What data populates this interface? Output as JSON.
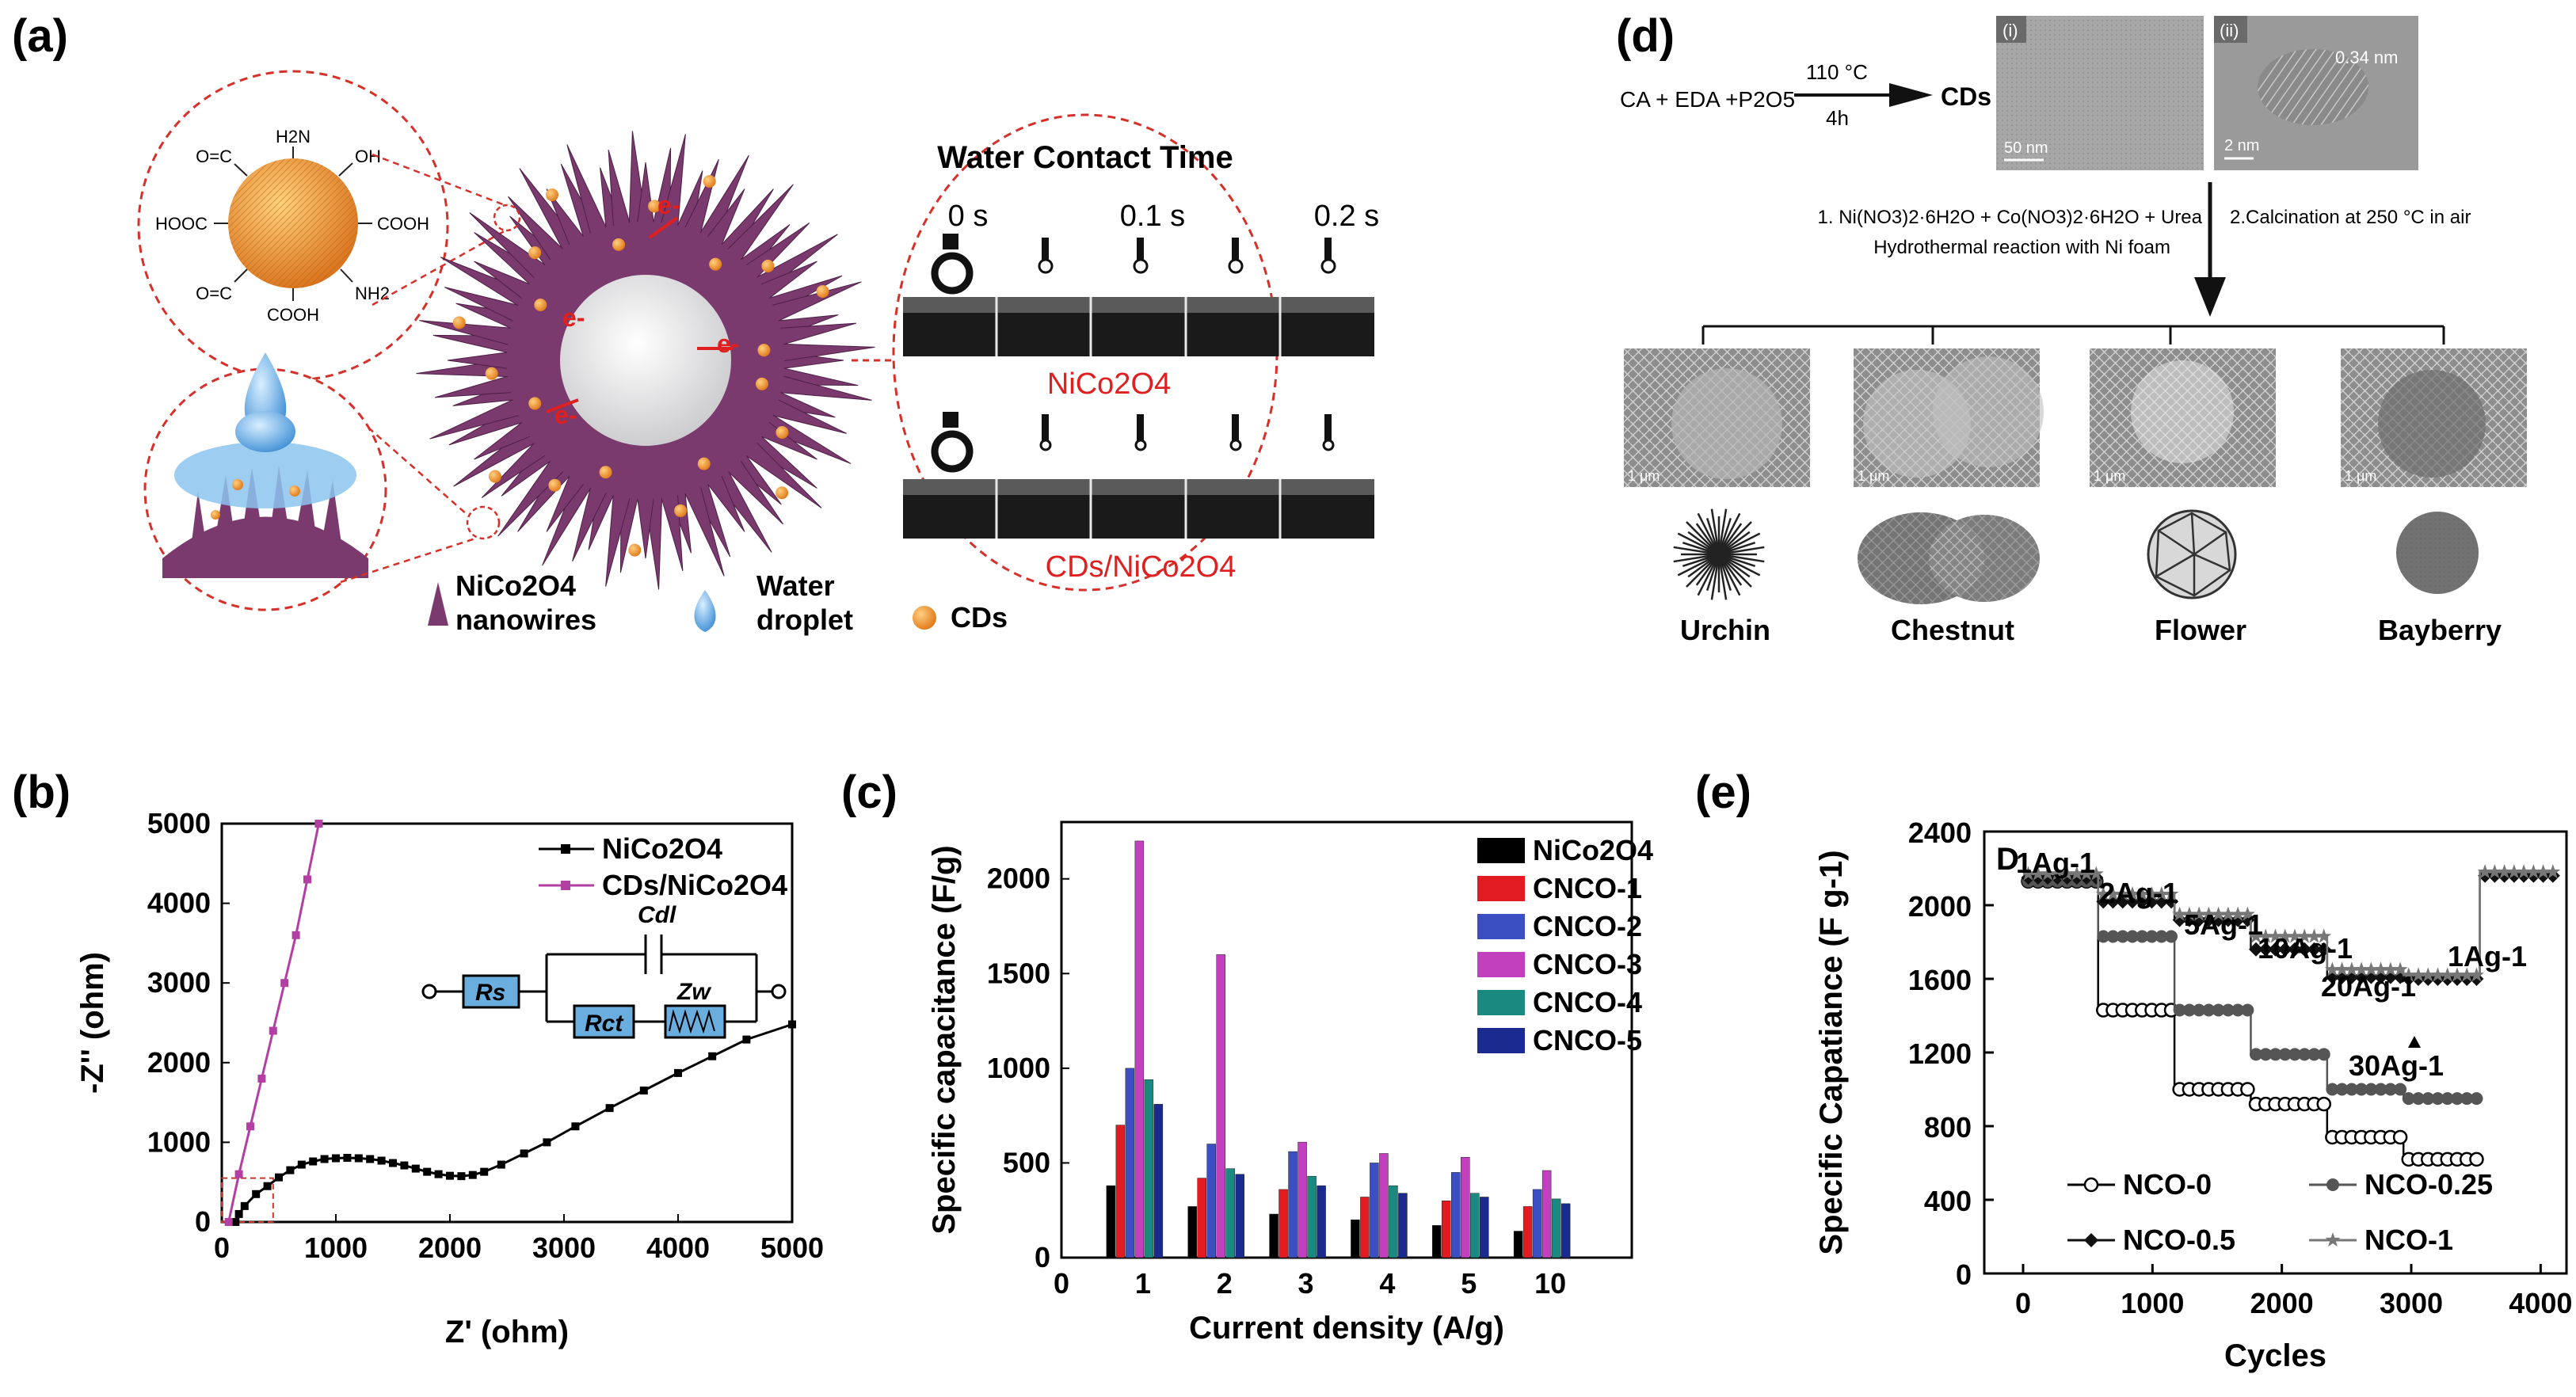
{
  "panels": {
    "a": {
      "label": "(a)",
      "cd_groups": [
        "H2N",
        "OH",
        "COOH",
        "NH2",
        "COOH",
        "HOOC",
        "O=C",
        "O=C"
      ],
      "contact_title": "Water Contact Time",
      "times": [
        "0 s",
        "0.1 s",
        "0.2 s"
      ],
      "row1_label": "NiCo2O4",
      "row2_label": "CDs/NiCo2O4",
      "electron": "e-",
      "legend": {
        "nanowires": [
          "NiCo2O4",
          "nanowires"
        ],
        "droplet": [
          "Water",
          "droplet"
        ],
        "cds": "CDs"
      },
      "colors": {
        "nanowire": "#7b3a6e",
        "cd": "#f0962a",
        "dash": "#d6302a",
        "water": "#6fb4e6"
      }
    },
    "d": {
      "label": "(d)",
      "reaction": "CA + EDA +P2O5",
      "condition_top": "110 °C",
      "condition_bottom": "4h",
      "product": "CDs",
      "tem1": {
        "tag": "(i)",
        "scale": "50 nm"
      },
      "tem2": {
        "tag": "(ii)",
        "lattice": "0.34 nm",
        "scale": "2 nm"
      },
      "step1_line1": "1. Ni(NO3)2·6H2O + Co(NO3)2·6H2O + Urea",
      "step1_line2": "Hydrothermal  reaction with Ni foam",
      "step2": "2.Calcination at 250 °C  in air",
      "sem_scale": "1 μm",
      "morphologies": [
        "Urchin",
        "Chestnut",
        "Flower",
        "Bayberry"
      ]
    },
    "b": {
      "label": "(b)",
      "legend": [
        "NiCo2O4",
        "CDs/NiCo2O4"
      ],
      "circuit": [
        "Rs",
        "Rct",
        "Zw",
        "Cdl"
      ]
    },
    "c": {
      "label": "(c)"
    },
    "e": {
      "label": "(e)",
      "corner_tag": "D"
    }
  },
  "chart_data": [
    {
      "id": "b",
      "type": "line",
      "xlabel": "Z' (ohm)",
      "ylabel": "-Z'' (ohm)",
      "xlim": [
        0,
        5000
      ],
      "ylim": [
        0,
        5000
      ],
      "xticks": [
        0,
        1000,
        2000,
        3000,
        4000,
        5000
      ],
      "yticks": [
        0,
        1000,
        2000,
        3000,
        4000,
        5000
      ],
      "series": [
        {
          "name": "NiCo2O4",
          "color": "#000000",
          "x": [
            120,
            150,
            200,
            300,
            400,
            500,
            600,
            700,
            800,
            900,
            1000,
            1100,
            1200,
            1300,
            1400,
            1500,
            1600,
            1700,
            1800,
            1900,
            2000,
            2100,
            2200,
            2300,
            2450,
            2650,
            2850,
            3100,
            3400,
            3700,
            4000,
            4300,
            4600,
            5000
          ],
          "y": [
            0,
            100,
            200,
            350,
            450,
            560,
            650,
            720,
            760,
            790,
            800,
            805,
            800,
            790,
            770,
            740,
            710,
            670,
            630,
            600,
            580,
            575,
            590,
            630,
            720,
            860,
            1000,
            1200,
            1430,
            1650,
            1870,
            2080,
            2290,
            2480
          ]
        },
        {
          "name": "CDs/NiCo2O4",
          "color": "#b43fa3",
          "x": [
            60,
            150,
            250,
            350,
            450,
            550,
            650,
            750,
            850
          ],
          "y": [
            0,
            600,
            1200,
            1800,
            2400,
            3000,
            3600,
            4300,
            5000
          ]
        }
      ]
    },
    {
      "id": "c",
      "type": "bar",
      "xlabel": "Current density (A/g)",
      "ylabel": "Specific capacitance (F/g)",
      "categories": [
        "1",
        "2",
        "3",
        "4",
        "5",
        "10"
      ],
      "xticks": [
        "0",
        "1",
        "2",
        "3",
        "4",
        "5",
        "10"
      ],
      "ylim": [
        0,
        2300
      ],
      "yticks": [
        0,
        500,
        1000,
        1500,
        2000
      ],
      "series": [
        {
          "name": "NiCo2O4",
          "color": "#000000",
          "values": [
            380,
            270,
            230,
            200,
            170,
            140
          ]
        },
        {
          "name": "CNCO-1",
          "color": "#e21b23",
          "values": [
            700,
            420,
            360,
            320,
            300,
            270
          ]
        },
        {
          "name": "CNCO-2",
          "color": "#3b4fc3",
          "values": [
            1000,
            600,
            560,
            500,
            450,
            360
          ]
        },
        {
          "name": "CNCO-3",
          "color": "#c23fbd",
          "values": [
            2200,
            1600,
            610,
            550,
            530,
            460
          ]
        },
        {
          "name": "CNCO-4",
          "color": "#1a8a80",
          "values": [
            940,
            470,
            430,
            380,
            340,
            310
          ]
        },
        {
          "name": "CNCO-5",
          "color": "#1b2a8e",
          "values": [
            810,
            440,
            380,
            340,
            320,
            285
          ]
        }
      ]
    },
    {
      "id": "e",
      "type": "line",
      "xlabel": "Cycles",
      "ylabel": "Specific Capatiance (F g-1)",
      "xlim": [
        -300,
        4200
      ],
      "ylim": [
        0,
        2400
      ],
      "xticks": [
        0,
        1000,
        2000,
        3000,
        4000
      ],
      "yticks": [
        0,
        400,
        800,
        1200,
        1600,
        2000,
        2400
      ],
      "rate_labels": [
        "1Ag-1",
        "2Ag-1",
        "5Ag-1",
        "10Ag-1",
        "20Ag-1",
        "30Ag-1",
        "1Ag-1"
      ],
      "series": [
        {
          "name": "NCO-0",
          "color": "#000000",
          "marker": "open-circle",
          "segments": [
            [
              0,
              580,
              2130
            ],
            [
              580,
              1170,
              1430
            ],
            [
              1170,
              1760,
              1000
            ],
            [
              1760,
              2350,
              920
            ],
            [
              2350,
              2940,
              740
            ],
            [
              2940,
              3530,
              620
            ]
          ]
        },
        {
          "name": "NCO-0.25",
          "color": "#555555",
          "marker": "dot",
          "segments": [
            [
              0,
              580,
              2130
            ],
            [
              580,
              1170,
              1830
            ],
            [
              1170,
              1760,
              1430
            ],
            [
              1760,
              2350,
              1190
            ],
            [
              2350,
              2940,
              1000
            ],
            [
              2940,
              3530,
              950
            ]
          ]
        },
        {
          "name": "NCO-0.5",
          "color": "#111111",
          "marker": "diamond",
          "segments": [
            [
              0,
              580,
              2150
            ],
            [
              580,
              1170,
              2020
            ],
            [
              1170,
              1760,
              1920
            ],
            [
              1760,
              2350,
              1760
            ],
            [
              2350,
              2940,
              1610
            ],
            [
              2940,
              3530,
              1600
            ],
            [
              3530,
              4120,
              2160
            ]
          ]
        },
        {
          "name": "NCO-1",
          "color": "#777777",
          "marker": "star",
          "segments": [
            [
              0,
              580,
              2170
            ],
            [
              580,
              1170,
              2060
            ],
            [
              1170,
              1760,
              1950
            ],
            [
              1760,
              2350,
              1830
            ],
            [
              2350,
              2940,
              1650
            ],
            [
              2940,
              3530,
              1620
            ],
            [
              3530,
              4120,
              2180
            ]
          ]
        }
      ]
    }
  ]
}
